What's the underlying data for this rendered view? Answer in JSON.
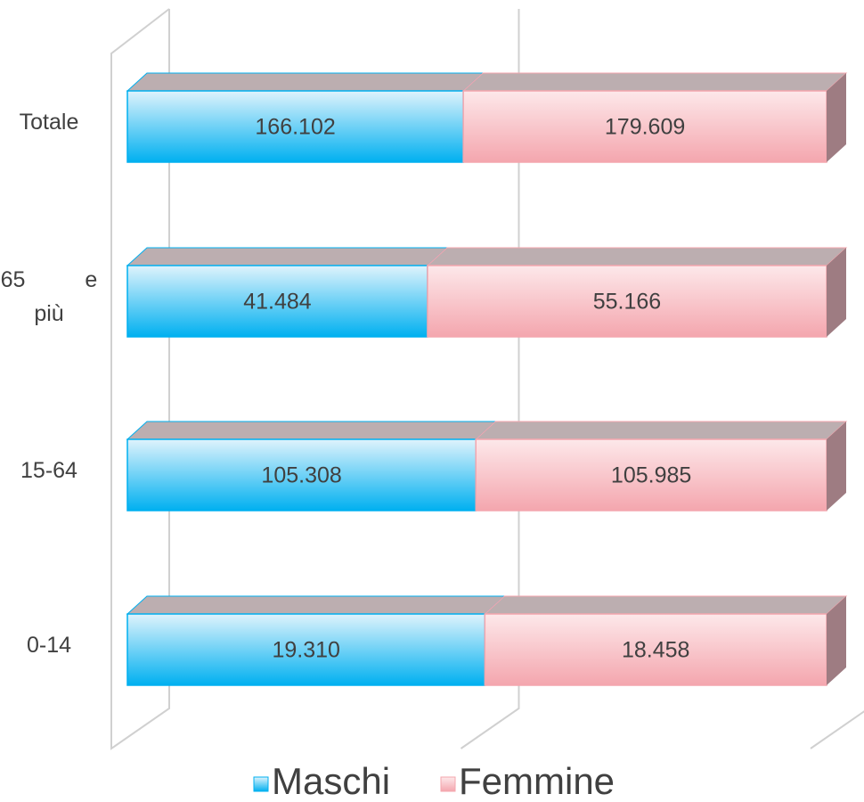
{
  "chart_data": {
    "type": "bar",
    "orientation": "horizontal",
    "stacking": "percent",
    "style": "3d",
    "categories": [
      "Totale",
      "65 e più",
      "15-64",
      "0-14"
    ],
    "series": [
      {
        "name": "Maschi",
        "color": "#00b0f0",
        "values": [
          166102,
          41484,
          105308,
          19310
        ],
        "value_labels": [
          "166.102",
          "41.484",
          "105.308",
          "19.310"
        ]
      },
      {
        "name": "Femmine",
        "color": "#f4a6ae",
        "values": [
          179609,
          55166,
          105985,
          18458
        ],
        "value_labels": [
          "179.609",
          "55.166",
          "105.985",
          "18.458"
        ]
      }
    ],
    "xlim": [
      0,
      100
    ],
    "xticks": [
      0,
      50,
      100
    ],
    "grid": true,
    "legend": "bottom"
  }
}
